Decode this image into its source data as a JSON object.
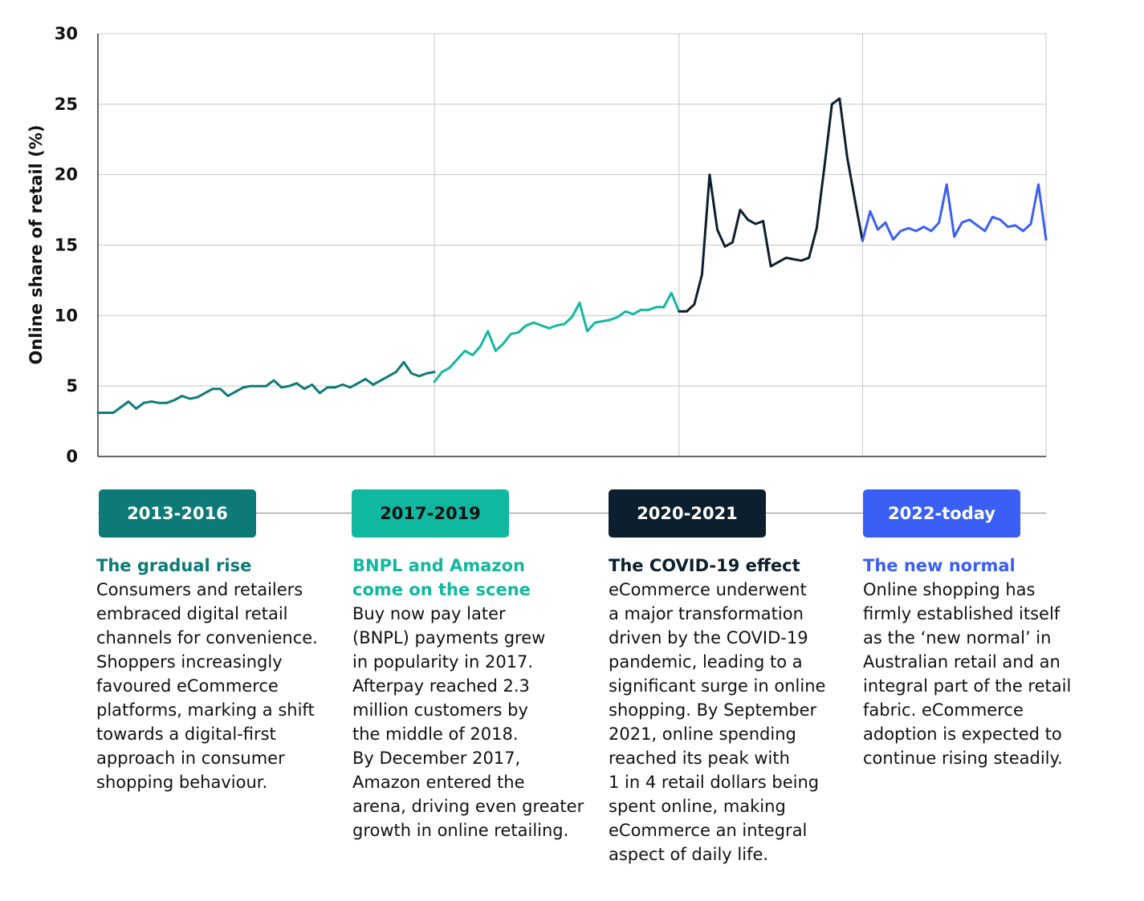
{
  "chart_data": {
    "type": "line",
    "title": "",
    "ylabel": "Online share of retail (%)",
    "xlabel": "",
    "ylim": [
      0,
      30
    ],
    "yticks": [
      0,
      5,
      10,
      15,
      20,
      25,
      30
    ],
    "grid": true,
    "x_period": "monthly, 2013 to 2024",
    "series": [
      {
        "values": [
          3.1,
          3.1,
          3.1,
          3.5,
          3.9,
          3.4,
          3.8,
          3.9,
          3.8,
          3.8,
          4.0,
          4.3,
          4.1,
          4.2,
          4.5,
          4.8,
          4.8,
          4.3,
          4.6,
          4.9,
          5.0,
          5.0,
          5.0,
          5.4,
          4.9,
          5.0,
          5.2,
          4.8,
          5.1,
          4.5,
          4.9,
          4.9,
          5.1,
          4.9,
          5.2,
          5.5,
          5.1,
          5.4,
          5.7,
          6.0,
          6.7,
          5.9,
          5.7,
          5.9,
          6.0
        ]
      },
      {
        "values": [
          5.3,
          6.0,
          6.3,
          6.9,
          7.5,
          7.2,
          7.8,
          8.9,
          7.5,
          8.0,
          8.7,
          8.8,
          9.3,
          9.5,
          9.3,
          9.1,
          9.3,
          9.4,
          9.9,
          10.9,
          8.9,
          9.5,
          9.6,
          9.7,
          9.9,
          10.3,
          10.1,
          10.4,
          10.4,
          10.6,
          10.6,
          11.6,
          10.3
        ]
      },
      {
        "values": [
          10.3,
          10.3,
          10.8,
          12.9,
          20.0,
          16.1,
          14.9,
          15.2,
          17.5,
          16.8,
          16.5,
          16.7,
          13.5,
          13.8,
          14.1,
          14.0,
          13.9,
          14.1,
          16.2,
          20.5,
          25.0,
          25.4,
          21.2,
          18.2,
          15.3
        ]
      },
      {
        "values": [
          15.3,
          17.4,
          16.1,
          16.6,
          15.4,
          16.0,
          16.2,
          16.0,
          16.3,
          16.0,
          16.6,
          19.3,
          15.6,
          16.6,
          16.8,
          16.4,
          16.0,
          17.0,
          16.8,
          16.3,
          16.4,
          16.0,
          16.5,
          19.3,
          15.4
        ]
      }
    ]
  },
  "colors": {
    "period1": "#0d7a78",
    "period2": "#11b8a0",
    "period3": "#0c1f2e",
    "period4": "#3b5ff5"
  },
  "periods": [
    {
      "label": "2013-2016",
      "heading": "The gradual rise",
      "body": [
        "Consumers and retailers",
        "embraced digital retail",
        "channels for convenience.",
        "Shoppers increasingly",
        "favoured eCommerce",
        "platforms, marking a shift",
        "towards a digital-first",
        "approach in consumer",
        "shopping behaviour."
      ]
    },
    {
      "label": "2017-2019",
      "heading": [
        "BNPL and Amazon",
        "come on the scene"
      ],
      "body": [
        "Buy now pay later",
        "(BNPL) payments grew",
        "in popularity in 2017.",
        "Afterpay reached  2.3",
        "million customers by",
        "the middle of 2018.",
        "By December 2017,",
        "Amazon entered the",
        "arena, driving even greater",
        "growth in online retailing."
      ]
    },
    {
      "label": "2020-2021",
      "heading": "The COVID-19 effect",
      "body": [
        "eCommerce underwent",
        "a major transformation",
        "driven by the COVID-19",
        "pandemic, leading to a",
        "significant surge in online",
        "shopping. By September",
        "2021, online spending",
        "reached its peak with",
        "1 in 4 retail dollars being",
        "spent online, making",
        "eCommerce an integral",
        "aspect of daily life."
      ]
    },
    {
      "label": "2022-today",
      "heading": "The new normal",
      "body": [
        "Online shopping has",
        "firmly established itself",
        "as the ‘new normal’ in",
        "Australian retail and an",
        "integral part of the retail",
        "fabric. eCommerce",
        "adoption is expected to",
        "continue rising steadily."
      ]
    }
  ]
}
